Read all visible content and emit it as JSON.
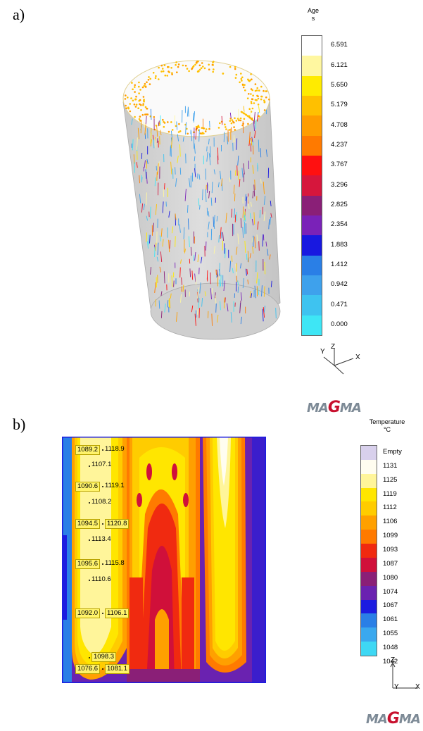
{
  "panel_a": {
    "label": "a)",
    "legend": {
      "title": "Age",
      "unit": "s",
      "ticks": [
        "6.591",
        "6.121",
        "5.650",
        "5.179",
        "4.708",
        "4.237",
        "3.767",
        "3.296",
        "2.825",
        "2.354",
        "1.883",
        "1.412",
        "0.942",
        "0.471",
        "0.000"
      ],
      "colors": [
        "#ffffff",
        "#fff7a0",
        "#ffeb00",
        "#ffc000",
        "#ff9d00",
        "#ff7a00",
        "#ff1010",
        "#d6163c",
        "#8a1f77",
        "#7a22b8",
        "#1818e0",
        "#2a7fe6",
        "#3ea1ec",
        "#3ec3f0",
        "#3ee6f5"
      ]
    },
    "axes": {
      "y": "Y",
      "z": "Z",
      "x": "X"
    },
    "logo": {
      "pre": "MA",
      "g": "G",
      "post": "MA"
    }
  },
  "panel_b": {
    "label": "b)",
    "legend": {
      "title": "Temperature",
      "unit": "°C",
      "empty_label": "Empty",
      "ticks": [
        "1131",
        "1125",
        "1119",
        "1112",
        "1106",
        "1099",
        "1093",
        "1087",
        "1080",
        "1074",
        "1067",
        "1061",
        "1055",
        "1048",
        "1042"
      ],
      "colors": [
        "#d8d0ec",
        "#fffdf0",
        "#fff59a",
        "#ffe600",
        "#ffcc00",
        "#ffa000",
        "#ff7a00",
        "#f02a10",
        "#d0103a",
        "#8a1f77",
        "#6a22b0",
        "#1c1ce0",
        "#2a7fe6",
        "#3aa8ee",
        "#3ed8f4"
      ]
    },
    "probes": {
      "r1l": "1089.2",
      "r1r": "1118.9",
      "r2": "1107.1",
      "r3l": "1090.6",
      "r3r": "1119.1",
      "r4": "1108.2",
      "r5l": "1094.5",
      "r5r": "1120.8",
      "r6": "1113.4",
      "r7l": "1095.6",
      "r7r": "1115.8",
      "r8": "1110.6",
      "r9l": "1092.0",
      "r9r": "1106.1",
      "r10": "1098.3",
      "r11l": "1076.6",
      "r11r": "1081.1"
    },
    "axes": {
      "z": "Z",
      "y": "Y",
      "x": "X"
    },
    "logo": {
      "pre": "MA",
      "g": "G",
      "post": "MA"
    }
  }
}
